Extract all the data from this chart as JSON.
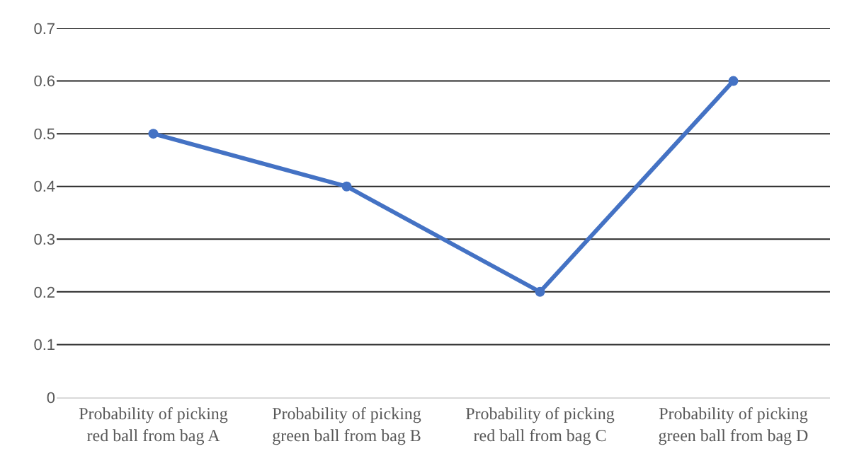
{
  "chart_data": {
    "type": "line",
    "categories": [
      "Probability of picking red ball from bag A",
      "Probability of picking green ball from bag B",
      "Probability of picking red ball from bag C",
      "Probability of picking green ball from bag D"
    ],
    "series": [
      {
        "color": "#4472c4",
        "values": [
          0.5,
          0.4,
          0.2,
          0.6
        ]
      }
    ],
    "ylim": [
      0,
      0.7
    ],
    "yticks": [
      0,
      0.1,
      0.2,
      0.3,
      0.4,
      0.5,
      0.6,
      0.7
    ],
    "grid": "y",
    "marker": "circle",
    "line_style": "solid"
  }
}
